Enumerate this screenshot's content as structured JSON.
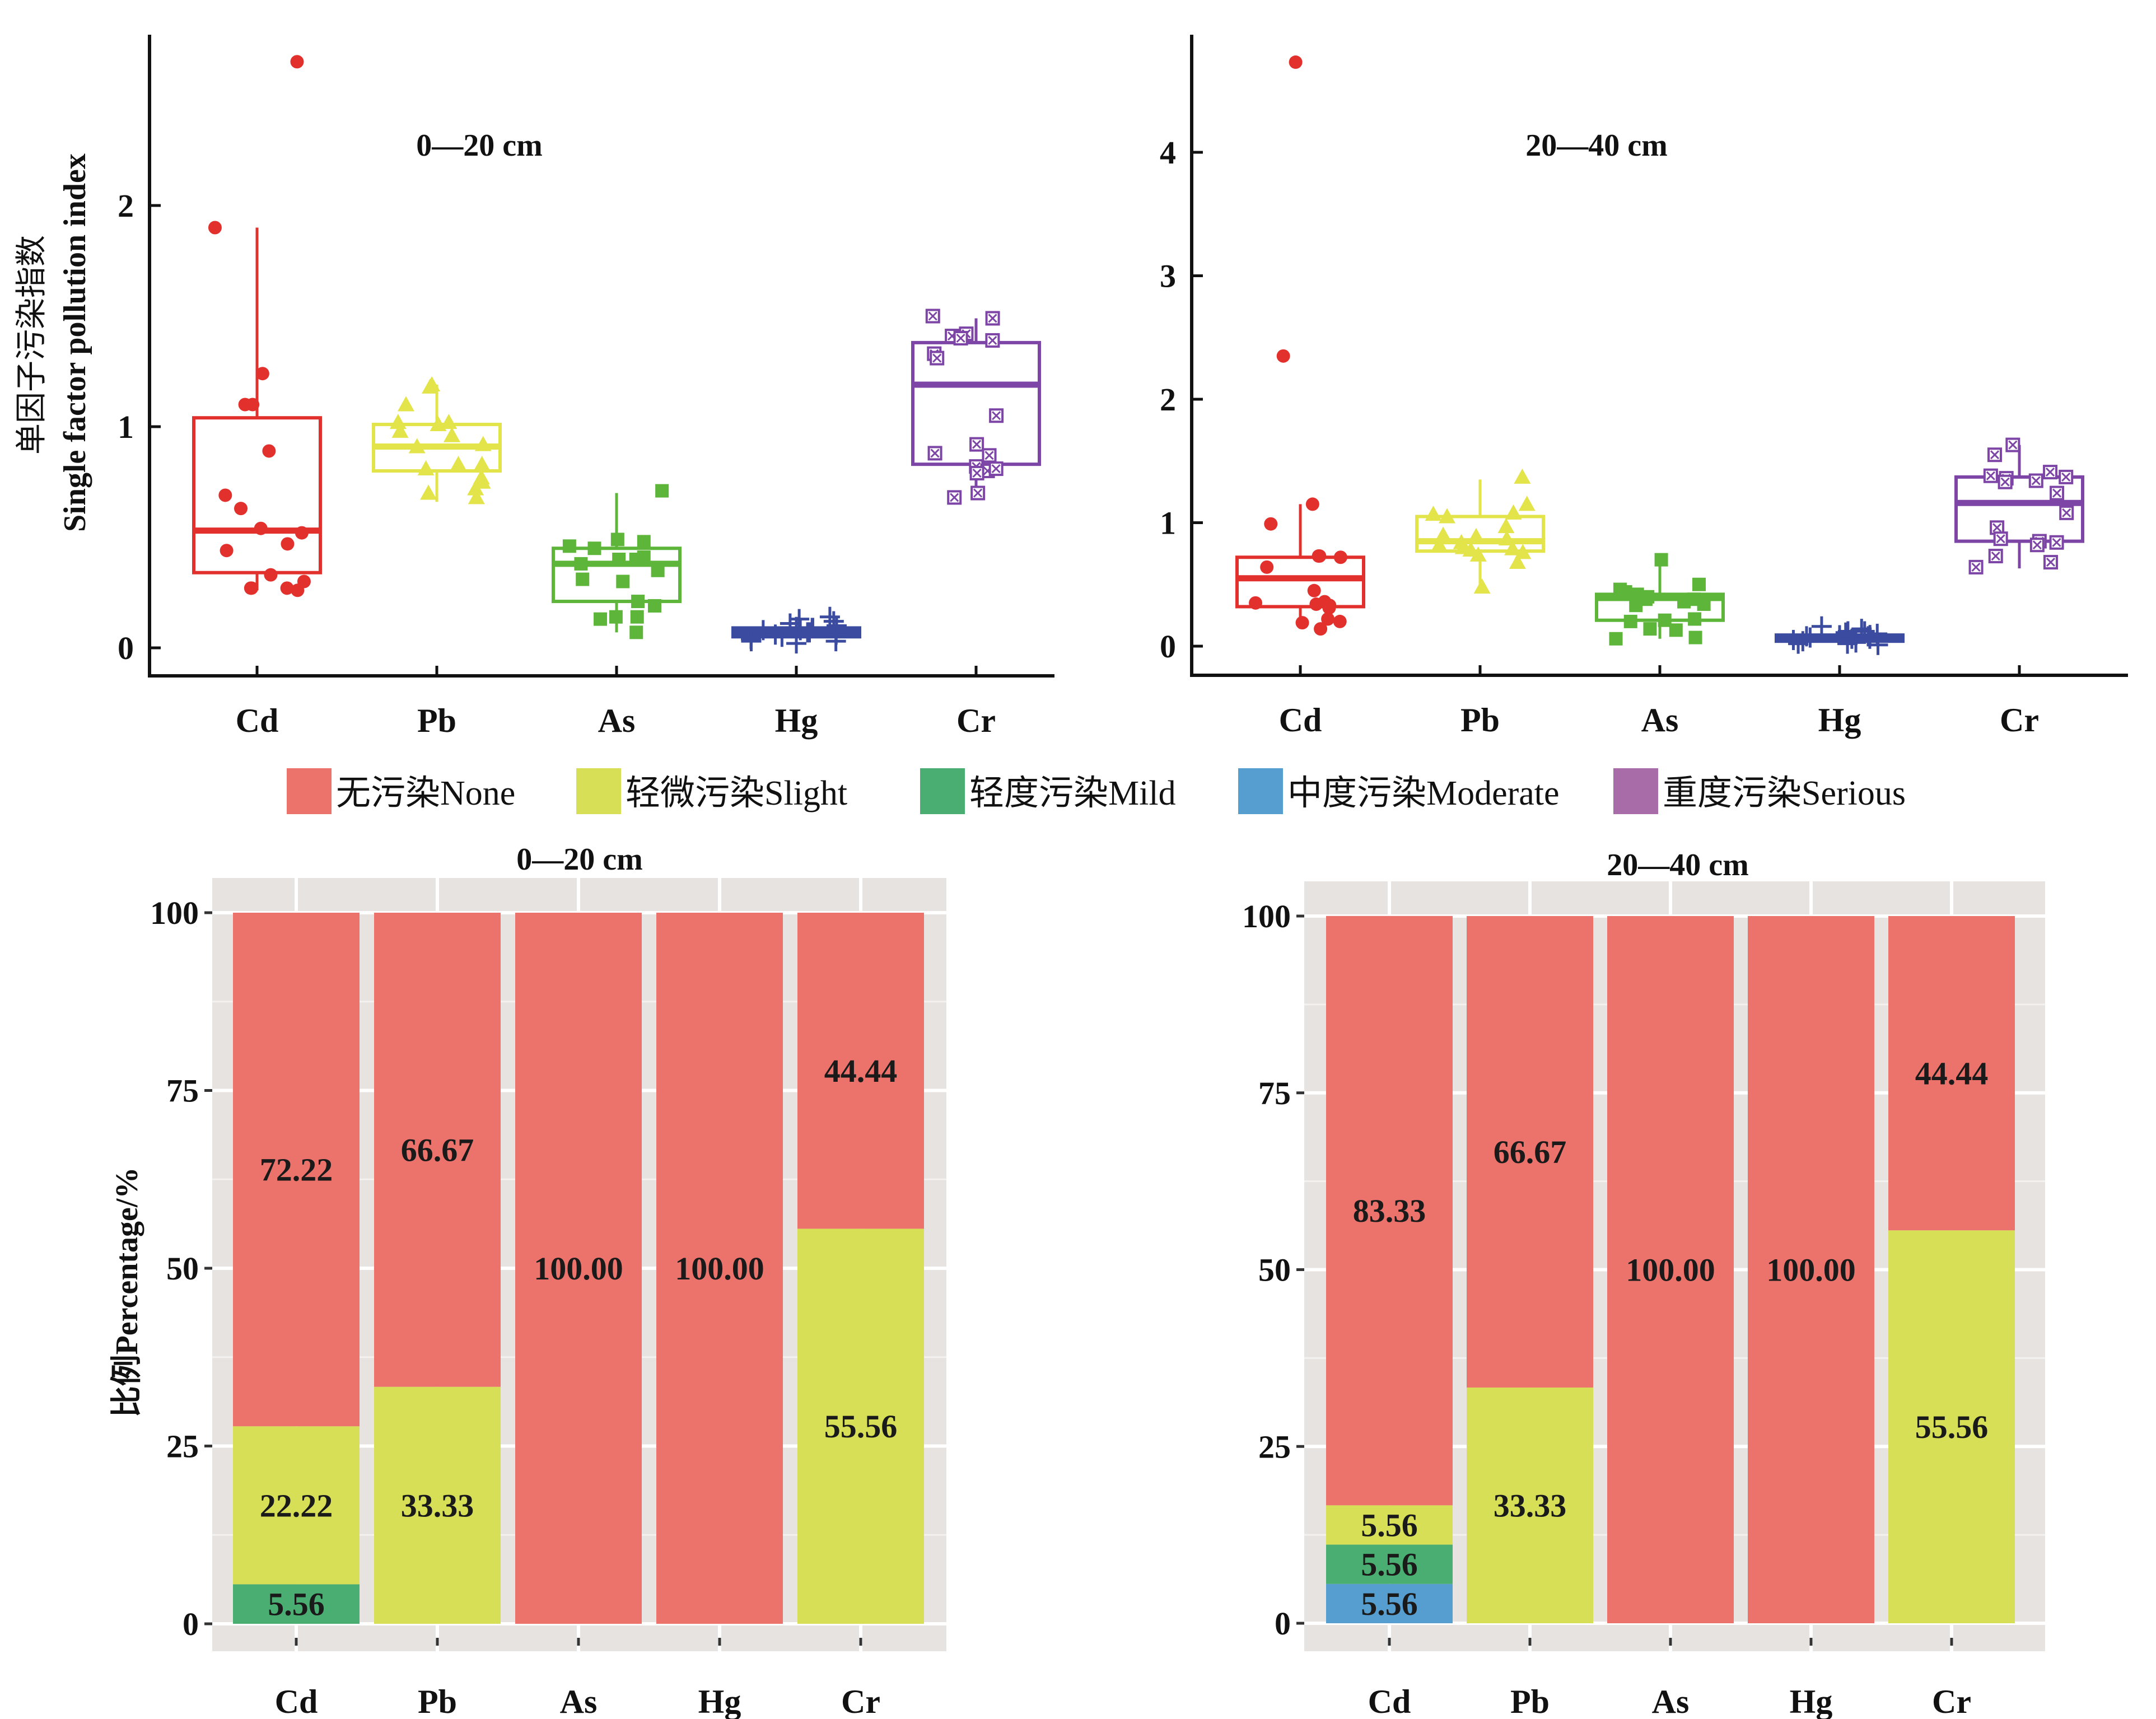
{
  "legend": {
    "items": [
      {
        "label": "无污染None",
        "color": "#EB736B"
      },
      {
        "label": "轻微污染Slight",
        "color": "#D6DF56"
      },
      {
        "label": "轻度污染Mild",
        "color": "#4AAE72"
      },
      {
        "label": "中度污染Moderate",
        "color": "#559ECF"
      },
      {
        "label": "重度污染Serious",
        "color": "#A86CA8"
      }
    ]
  },
  "chart_data": [
    {
      "type": "box",
      "id": "box-0-20",
      "title": "0—20 cm",
      "ylabel_cn": "单因子污染指数",
      "ylabel_en": "Single factor pollution index",
      "xlabel": "",
      "ylim": [
        -0.13,
        2.8
      ],
      "yticks": [
        "0",
        "1",
        "2"
      ],
      "ytick_values": [
        0,
        1,
        2
      ],
      "categories": [
        "Cd",
        "Pb",
        "As",
        "Hg",
        "Cr"
      ],
      "series": [
        {
          "name": "Cd",
          "color": "#E2302D",
          "marker": "circle",
          "q1": 0.34,
          "median": 0.53,
          "q3": 1.04,
          "whisker_low": 0.26,
          "whisker_high": 1.9,
          "points": [
            2.65,
            1.9,
            1.24,
            1.1,
            1.1,
            0.89,
            0.69,
            0.63,
            0.54,
            0.52,
            0.47,
            0.44,
            0.3,
            0.27,
            0.27,
            0.26,
            0.27,
            0.33
          ]
        },
        {
          "name": "Pb",
          "color": "#E3E34A",
          "marker": "triangle",
          "q1": 0.8,
          "median": 0.91,
          "q3": 1.01,
          "whisker_low": 0.66,
          "whisker_high": 1.19,
          "points": [
            1.19,
            1.18,
            1.1,
            1.02,
            1.01,
            0.98,
            1.02,
            0.96,
            0.92,
            0.91,
            0.83,
            0.81,
            0.83,
            0.77,
            0.7,
            0.72,
            0.68,
            0.75
          ]
        },
        {
          "name": "As",
          "color": "#5DB53A",
          "marker": "square",
          "q1": 0.21,
          "median": 0.38,
          "q3": 0.45,
          "whisker_low": 0.07,
          "whisker_high": 0.7,
          "points": [
            0.71,
            0.49,
            0.48,
            0.46,
            0.45,
            0.41,
            0.38,
            0.4,
            0.35,
            0.31,
            0.3,
            0.21,
            0.19,
            0.14,
            0.14,
            0.13,
            0.07,
            0.4
          ]
        },
        {
          "name": "Hg",
          "color": "#3A4BA0",
          "marker": "plus",
          "q1": 0.05,
          "median": 0.07,
          "q3": 0.09,
          "whisker_low": 0.02,
          "whisker_high": 0.14,
          "points": [
            0.14,
            0.12,
            0.11,
            0.13,
            0.09,
            0.08,
            0.07,
            0.09,
            0.06,
            0.05,
            0.06,
            0.08,
            0.04,
            0.03,
            0.03,
            0.02,
            0.07,
            0.1
          ]
        },
        {
          "name": "Cr",
          "color": "#7D45A5",
          "marker": "boxx",
          "q1": 0.83,
          "median": 1.19,
          "q3": 1.38,
          "whisker_low": 0.69,
          "whisker_high": 1.49,
          "points": [
            1.5,
            1.49,
            1.42,
            1.41,
            1.4,
            1.39,
            1.33,
            1.31,
            1.05,
            0.92,
            0.88,
            0.87,
            0.82,
            0.8,
            0.79,
            0.7,
            0.68,
            0.81
          ]
        }
      ]
    },
    {
      "type": "box",
      "id": "box-20-40",
      "title": "20—40 cm",
      "ylabel_cn": "",
      "ylabel_en": "",
      "xlabel": "",
      "ylim": [
        -0.23,
        4.95
      ],
      "yticks": [
        "0",
        "1",
        "2",
        "3",
        "4"
      ],
      "ytick_values": [
        0,
        1,
        2,
        3,
        4
      ],
      "categories": [
        "Cd",
        "Pb",
        "As",
        "Hg",
        "Cr"
      ],
      "series": [
        {
          "name": "Cd",
          "color": "#E2302D",
          "marker": "circle",
          "q1": 0.32,
          "median": 0.55,
          "q3": 0.72,
          "whisker_low": 0.14,
          "whisker_high": 1.15,
          "points": [
            4.73,
            2.35,
            1.15,
            0.99,
            0.73,
            0.72,
            0.73,
            0.64,
            0.45,
            0.36,
            0.35,
            0.33,
            0.31,
            0.22,
            0.2,
            0.19,
            0.14,
            0.34
          ]
        },
        {
          "name": "Pb",
          "color": "#E3E34A",
          "marker": "triangle",
          "q1": 0.77,
          "median": 0.85,
          "q3": 1.05,
          "whisker_low": 0.48,
          "whisker_high": 1.35,
          "points": [
            1.37,
            1.15,
            1.05,
            1.08,
            1.07,
            0.97,
            0.89,
            0.87,
            0.84,
            0.82,
            0.8,
            0.79,
            0.78,
            0.74,
            0.76,
            0.68,
            0.48,
            0.9
          ]
        },
        {
          "name": "As",
          "color": "#5DB53A",
          "marker": "square",
          "q1": 0.21,
          "median": 0.39,
          "q3": 0.42,
          "whisker_low": 0.06,
          "whisker_high": 0.69,
          "points": [
            0.7,
            0.5,
            0.46,
            0.44,
            0.42,
            0.4,
            0.38,
            0.38,
            0.36,
            0.34,
            0.33,
            0.22,
            0.21,
            0.2,
            0.14,
            0.13,
            0.07,
            0.06
          ]
        },
        {
          "name": "Hg",
          "color": "#3A4BA0",
          "marker": "plus",
          "q1": 0.04,
          "median": 0.07,
          "q3": 0.09,
          "whisker_low": 0.01,
          "whisker_high": 0.17,
          "points": [
            0.16,
            0.14,
            0.12,
            0.11,
            0.1,
            0.09,
            0.08,
            0.08,
            0.07,
            0.06,
            0.05,
            0.04,
            0.03,
            0.02,
            0.02,
            0.01,
            0.12,
            0.06
          ]
        },
        {
          "name": "Cr",
          "color": "#7D45A5",
          "marker": "boxx",
          "q1": 0.85,
          "median": 1.16,
          "q3": 1.37,
          "whisker_low": 0.63,
          "whisker_high": 1.63,
          "points": [
            1.63,
            1.55,
            1.41,
            1.38,
            1.37,
            1.36,
            1.34,
            1.33,
            1.24,
            1.08,
            0.96,
            0.87,
            0.85,
            0.84,
            0.82,
            0.73,
            0.68,
            0.64
          ]
        }
      ]
    },
    {
      "type": "bar",
      "stacked": true,
      "id": "bar-0-20",
      "title": "0—20 cm",
      "ylabel": "比例Percentage/%",
      "xlabel": "",
      "ylim": [
        -3.9,
        104.9
      ],
      "yticks": [
        "0",
        "25",
        "50",
        "75",
        "100"
      ],
      "ytick_values": [
        0,
        25,
        50,
        75,
        100
      ],
      "grid": true,
      "categories": [
        "Cd",
        "Pb",
        "As",
        "Hg",
        "Cr"
      ],
      "series": [
        {
          "name": "轻度污染Mild",
          "color": "#4AAE72",
          "values": [
            5.56,
            0,
            0,
            0,
            0
          ],
          "labels": [
            "5.56",
            "",
            "",
            "",
            ""
          ]
        },
        {
          "name": "轻微污染Slight",
          "color": "#D6DF56",
          "values": [
            22.22,
            33.33,
            0,
            0,
            55.56
          ],
          "labels": [
            "22.22",
            "33.33",
            "",
            "",
            "55.56"
          ]
        },
        {
          "name": "无污染None",
          "color": "#EB736B",
          "values": [
            72.22,
            66.67,
            100.0,
            100.0,
            44.44
          ],
          "labels": [
            "72.22",
            "66.67",
            "100.00",
            "100.00",
            "44.44"
          ]
        }
      ]
    },
    {
      "type": "bar",
      "stacked": true,
      "id": "bar-20-40",
      "title": "20—40 cm",
      "ylabel": "",
      "xlabel": "",
      "ylim": [
        -3.9,
        104.9
      ],
      "yticks": [
        "0",
        "25",
        "50",
        "75",
        "100"
      ],
      "ytick_values": [
        0,
        25,
        50,
        75,
        100
      ],
      "grid": true,
      "categories": [
        "Cd",
        "Pb",
        "As",
        "Hg",
        "Cr"
      ],
      "series": [
        {
          "name": "中度污染Moderate",
          "color": "#559ECF",
          "values": [
            5.56,
            0,
            0,
            0,
            0
          ],
          "labels": [
            "5.56",
            "",
            "",
            "",
            ""
          ]
        },
        {
          "name": "轻度污染Mild",
          "color": "#4AAE72",
          "values": [
            5.56,
            0,
            0,
            0,
            0
          ],
          "labels": [
            "5.56",
            "",
            "",
            "",
            ""
          ]
        },
        {
          "name": "轻微污染Slight",
          "color": "#D6DF56",
          "values": [
            5.56,
            33.33,
            0,
            0,
            55.56
          ],
          "labels": [
            "5.56",
            "33.33",
            "",
            "",
            "55.56"
          ]
        },
        {
          "name": "无污染None",
          "color": "#EB736B",
          "values": [
            83.33,
            66.67,
            100.0,
            100.0,
            44.44
          ],
          "labels": [
            "83.33",
            "66.67",
            "100.00",
            "100.00",
            "44.44"
          ]
        }
      ]
    }
  ]
}
